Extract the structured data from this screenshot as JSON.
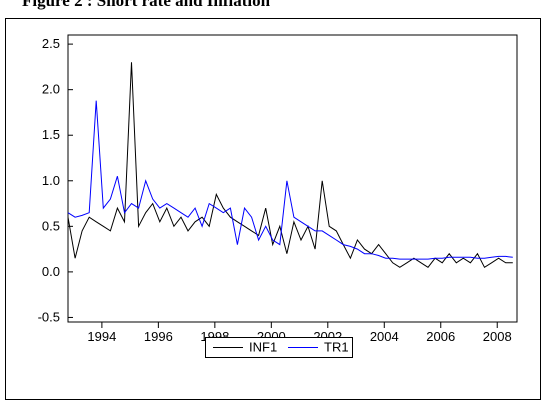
{
  "title": "Figure 2 : Short rate and Inflation",
  "chart_data": {
    "type": "line",
    "x": [
      1992.8,
      1993.05,
      1993.3,
      1993.55,
      1993.8,
      1994.05,
      1994.3,
      1994.55,
      1994.8,
      1995.05,
      1995.3,
      1995.55,
      1995.8,
      1996.05,
      1996.3,
      1996.55,
      1996.8,
      1997.05,
      1997.3,
      1997.55,
      1997.8,
      1998.05,
      1998.3,
      1998.55,
      1998.8,
      1999.05,
      1999.3,
      1999.55,
      1999.8,
      2000.05,
      2000.3,
      2000.55,
      2000.8,
      2001.05,
      2001.3,
      2001.55,
      2001.8,
      2002.05,
      2002.3,
      2002.55,
      2002.8,
      2003.05,
      2003.3,
      2003.55,
      2003.8,
      2004.05,
      2004.3,
      2004.55,
      2004.8,
      2005.05,
      2005.3,
      2005.55,
      2005.8,
      2006.05,
      2006.3,
      2006.55,
      2006.8,
      2007.05,
      2007.3,
      2007.55,
      2007.8,
      2008.05,
      2008.3,
      2008.55
    ],
    "series": [
      {
        "name": "INF1",
        "color": "#000000",
        "values": [
          0.6,
          0.15,
          0.45,
          0.6,
          0.55,
          0.5,
          0.45,
          0.7,
          0.55,
          2.3,
          0.5,
          0.65,
          0.75,
          0.55,
          0.7,
          0.5,
          0.6,
          0.45,
          0.55,
          0.6,
          0.5,
          0.85,
          0.7,
          0.6,
          0.55,
          0.5,
          0.45,
          0.4,
          0.7,
          0.3,
          0.5,
          0.2,
          0.55,
          0.35,
          0.5,
          0.25,
          1.0,
          0.5,
          0.45,
          0.3,
          0.15,
          0.35,
          0.25,
          0.2,
          0.3,
          0.2,
          0.1,
          0.05,
          0.1,
          0.15,
          0.1,
          0.05,
          0.15,
          0.1,
          0.2,
          0.1,
          0.15,
          0.1,
          0.2,
          0.05,
          0.1,
          0.15,
          0.1,
          0.1
        ]
      },
      {
        "name": "TR1",
        "color": "#0000ff",
        "values": [
          0.65,
          0.6,
          0.62,
          0.65,
          1.88,
          0.7,
          0.8,
          1.05,
          0.65,
          0.75,
          0.7,
          1.0,
          0.8,
          0.7,
          0.75,
          0.7,
          0.65,
          0.6,
          0.7,
          0.5,
          0.75,
          0.7,
          0.65,
          0.7,
          0.3,
          0.7,
          0.6,
          0.35,
          0.5,
          0.35,
          0.3,
          1.0,
          0.6,
          0.55,
          0.5,
          0.45,
          0.45,
          0.4,
          0.35,
          0.3,
          0.28,
          0.25,
          0.2,
          0.2,
          0.18,
          0.15,
          0.15,
          0.14,
          0.14,
          0.14,
          0.14,
          0.14,
          0.15,
          0.15,
          0.16,
          0.16,
          0.16,
          0.16,
          0.15,
          0.15,
          0.16,
          0.17,
          0.17,
          0.16
        ]
      }
    ],
    "xlim": [
      1992.8,
      2008.7
    ],
    "xticks": [
      1994,
      1996,
      1998,
      2000,
      2002,
      2004,
      2006,
      2008
    ],
    "ylim": [
      -0.55,
      2.6
    ],
    "yticks": [
      -0.5,
      {
        "value": 0,
        "label": "0.0"
      },
      0.5,
      {
        "value": 1,
        "label": "1.0"
      },
      1.5,
      {
        "value": 2,
        "label": "2.0"
      },
      2.5
    ],
    "legend": "bottom"
  }
}
